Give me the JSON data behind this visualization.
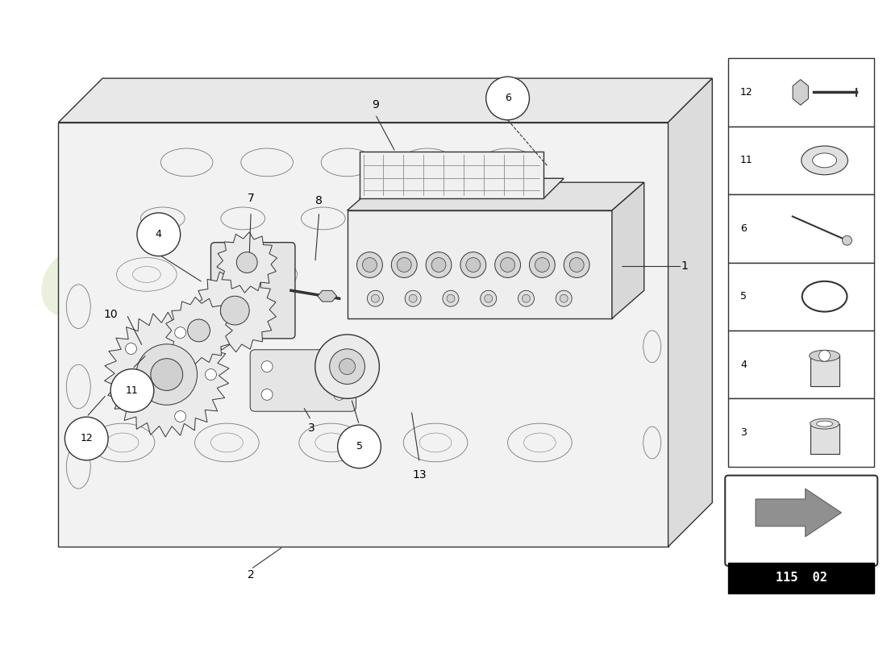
{
  "bg_color": "#ffffff",
  "lc": "#333333",
  "llc": "#777777",
  "wm_color": "#c8d4a0",
  "fig_w": 11.0,
  "fig_h": 8.0,
  "dpi": 100,
  "legend_items": [
    "12",
    "11",
    "6",
    "5",
    "4",
    "3"
  ],
  "diagram_code": "115 02"
}
